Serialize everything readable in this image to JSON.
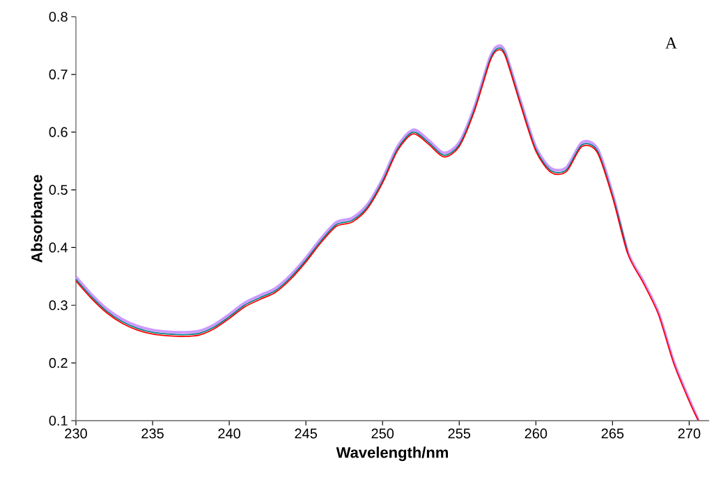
{
  "chart_data": {
    "type": "line",
    "xlabel": "Wavelength/nm",
    "ylabel": "Absorbance",
    "annotations": [
      "A"
    ],
    "x": [
      230,
      231,
      232,
      233,
      234,
      235,
      236,
      237,
      238,
      239,
      240,
      241,
      242,
      243,
      244,
      245,
      246,
      247,
      248,
      249,
      250,
      251,
      252,
      253,
      254,
      255,
      256,
      257,
      257.5,
      258,
      259,
      260,
      261,
      262,
      263,
      264,
      265,
      266,
      267,
      268,
      269,
      270,
      270.6
    ],
    "series": [
      {
        "color": "#cc99ff",
        "values": [
          0.349,
          0.319,
          0.294,
          0.276,
          0.264,
          0.257,
          0.254,
          0.253,
          0.255,
          0.266,
          0.284,
          0.304,
          0.317,
          0.329,
          0.352,
          0.382,
          0.416,
          0.444,
          0.451,
          0.474,
          0.519,
          0.576,
          0.604,
          0.586,
          0.564,
          0.582,
          0.644,
          0.729,
          0.749,
          0.739,
          0.654,
          0.574,
          0.537,
          0.539,
          0.582,
          0.572,
          0.494,
          0.392,
          0.342,
          0.287,
          0.202,
          0.137,
          0.101
        ]
      },
      {
        "color": "#008080",
        "values": [
          0.345,
          0.315,
          0.29,
          0.272,
          0.26,
          0.253,
          0.25,
          0.249,
          0.251,
          0.262,
          0.28,
          0.3,
          0.313,
          0.325,
          0.348,
          0.378,
          0.412,
          0.44,
          0.447,
          0.47,
          0.515,
          0.572,
          0.6,
          0.582,
          0.56,
          0.578,
          0.64,
          0.725,
          0.745,
          0.735,
          0.65,
          0.57,
          0.533,
          0.535,
          0.578,
          0.568,
          0.49,
          0.39,
          null,
          null,
          null,
          null,
          null
        ]
      },
      {
        "color": "#ff0000",
        "values": [
          0.342,
          0.312,
          0.287,
          0.269,
          0.257,
          0.25,
          0.247,
          0.246,
          0.248,
          0.259,
          0.277,
          0.297,
          0.31,
          0.322,
          0.345,
          0.375,
          0.409,
          0.437,
          0.444,
          0.467,
          0.512,
          0.569,
          0.597,
          0.579,
          0.557,
          0.575,
          0.637,
          0.722,
          0.742,
          0.732,
          0.647,
          0.567,
          0.53,
          0.532,
          0.575,
          0.565,
          0.487,
          0.389,
          0.339,
          0.284,
          0.199,
          0.134,
          0.1
        ]
      }
    ],
    "xlim": [
      230,
      271.3
    ],
    "ylim": [
      0.1,
      0.8
    ],
    "xticks": [
      230,
      235,
      240,
      245,
      250,
      255,
      260,
      265,
      270
    ],
    "yticks": [
      0.1,
      0.2,
      0.3,
      0.4,
      0.5,
      0.6,
      0.7,
      0.8
    ],
    "grid": false,
    "marker": "none",
    "line_style": "solid"
  }
}
